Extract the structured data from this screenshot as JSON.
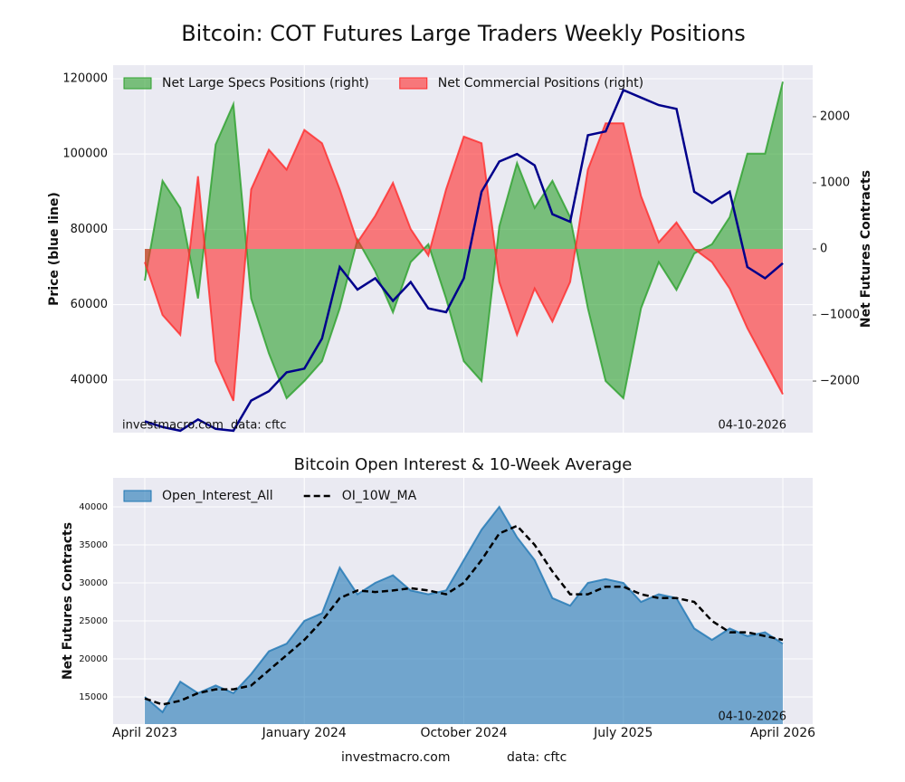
{
  "chart_data": [
    {
      "type": "area",
      "title": "Bitcoin: COT Futures Large Traders Weekly Positions",
      "y_label": "Price (blue line)",
      "y2_label": "Net Futures Contracts",
      "annotations": [
        "investmacro.com",
        "data: cftc",
        "04-10-2026"
      ],
      "ylim": [
        26000,
        123600
      ],
      "yticks": [
        40000,
        60000,
        80000,
        100000,
        120000
      ],
      "y2lim": [
        -2780,
        2780
      ],
      "y2ticks": [
        {
          "value": -2000,
          "label": "−2000"
        },
        {
          "value": -1000,
          "label": "−1000"
        },
        0,
        1000,
        2000
      ],
      "grid": true,
      "legend": "upper left",
      "series": [
        {
          "name": "Net Large Specs Positions (right)",
          "color": "#2ca02c",
          "style": "area",
          "axis": "y2",
          "values": [
            -480,
            1030,
            620,
            -750,
            1580,
            2190,
            -750,
            -1580,
            -2260,
            -2000,
            -1700,
            -900,
            140,
            -340,
            -960,
            -200,
            70,
            -750,
            -1700,
            -2000,
            340,
            1300,
            620,
            1030,
            480,
            -900,
            -2000,
            -2260,
            -900,
            -200,
            -620,
            -70,
            70,
            480,
            1440,
            1440,
            2530
          ]
        },
        {
          "name": "Net Commercial Positions (right)",
          "color": "#ff2a2a",
          "style": "area",
          "axis": "y2",
          "values": [
            -200,
            -1000,
            -1300,
            1100,
            -1700,
            -2300,
            900,
            1500,
            1200,
            1800,
            1600,
            900,
            100,
            500,
            1000,
            300,
            -100,
            900,
            1700,
            1600,
            -500,
            -1300,
            -600,
            -1100,
            -500,
            1200,
            1900,
            1900,
            800,
            100,
            400,
            0,
            -200,
            -600,
            -1200,
            -1700,
            -2200
          ]
        },
        {
          "color": "#00008b",
          "style": "line",
          "values": [
            29000,
            27500,
            26500,
            29500,
            27000,
            26500,
            34500,
            37000,
            42000,
            43000,
            51000,
            70000,
            64000,
            67000,
            61000,
            66000,
            59000,
            58000,
            67000,
            90000,
            98000,
            100000,
            97000,
            84000,
            82000,
            105000,
            106000,
            117000,
            115000,
            113000,
            112000,
            90000,
            87000,
            90000,
            70000,
            67000,
            71000
          ]
        }
      ]
    },
    {
      "type": "area",
      "title": "Bitcoin Open Interest & 10-Week Average",
      "y_label": "Net Futures Contracts",
      "annotations": [
        "04-10-2026"
      ],
      "footer": [
        "investmacro.com",
        "data: cftc"
      ],
      "categories": [
        "April 2023",
        null,
        null,
        null,
        null,
        null,
        null,
        null,
        null,
        "January 2024",
        null,
        null,
        null,
        null,
        null,
        null,
        null,
        null,
        "October 2024",
        null,
        null,
        null,
        null,
        null,
        null,
        null,
        null,
        "July 2025",
        null,
        null,
        null,
        null,
        null,
        null,
        null,
        null,
        "April 2026"
      ],
      "ylim": [
        11430,
        43810
      ],
      "yticks": [
        15000,
        20000,
        25000,
        30000,
        35000,
        40000
      ],
      "grid": true,
      "legend": "upper left",
      "series": [
        {
          "name": "Open_Interest_All",
          "color": "#1f77b4",
          "style": "area",
          "values": [
            15000,
            13000,
            17000,
            15500,
            16500,
            15500,
            18000,
            21000,
            22000,
            25000,
            26000,
            32000,
            28500,
            30000,
            31000,
            29000,
            28500,
            29000,
            33000,
            37000,
            40000,
            36000,
            33000,
            28000,
            27000,
            30000,
            30500,
            30000,
            27500,
            28500,
            28000,
            24000,
            22500,
            24000,
            23000,
            23500,
            22000
          ]
        },
        {
          "name": "OI_10W_MA",
          "color": "#000000",
          "style": "line",
          "dash": "dashed",
          "values": [
            14800,
            14000,
            14500,
            15500,
            16000,
            16000,
            16500,
            18500,
            20500,
            22500,
            25000,
            28000,
            29000,
            28800,
            29000,
            29300,
            29000,
            28500,
            30000,
            33000,
            36500,
            37500,
            35000,
            31500,
            28500,
            28500,
            29500,
            29500,
            28500,
            28000,
            28000,
            27500,
            25000,
            23500,
            23500,
            23000,
            22500
          ]
        }
      ]
    }
  ]
}
